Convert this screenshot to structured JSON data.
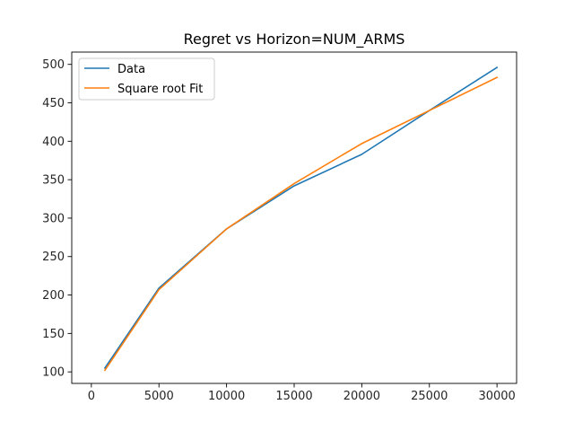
{
  "chart_data": {
    "type": "line",
    "title": "Regret vs Horizon=NUM_ARMS",
    "xlabel": "",
    "ylabel": "",
    "xlim": [
      -1450,
      31450
    ],
    "ylim": [
      85,
      516
    ],
    "xticks": [
      0,
      5000,
      10000,
      15000,
      20000,
      25000,
      30000
    ],
    "yticks": [
      100,
      150,
      200,
      250,
      300,
      350,
      400,
      450,
      500
    ],
    "grid": false,
    "legend": {
      "placement": "top-left"
    },
    "series": [
      {
        "name": "Data",
        "color": "#1f77b4",
        "x": [
          1000,
          5000,
          10000,
          15000,
          20000,
          25000,
          30000
        ],
        "y": [
          105,
          209,
          286,
          342,
          383,
          440,
          496
        ]
      },
      {
        "name": "Square root Fit",
        "color": "#ff7f0e",
        "x": [
          1000,
          5000,
          10000,
          15000,
          20000,
          25000,
          30000
        ],
        "y": [
          102,
          207,
          286,
          345,
          397,
          440,
          483
        ]
      }
    ]
  }
}
